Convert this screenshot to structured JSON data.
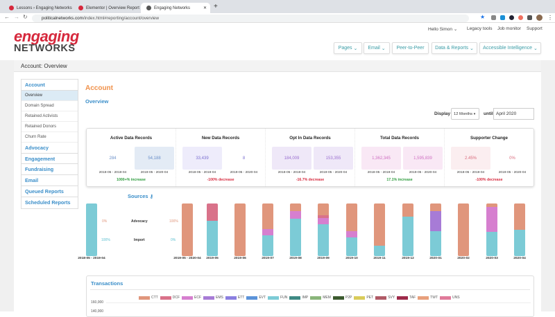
{
  "browser": {
    "tabs": [
      {
        "label": "Lessons › Engaging Networks"
      },
      {
        "label": "Elementor | Overview Report"
      },
      {
        "label": "Engaging Networks",
        "active": true
      }
    ],
    "url_host": "politicalnetworks.com",
    "url_path": "/index.html#reporting/account/overview"
  },
  "header": {
    "logo_top": "engaging",
    "logo_bottom": "NETWORKS",
    "user": "Hello Simon",
    "links": [
      "Legacy tools",
      "Job monitor",
      "Support"
    ],
    "menu": [
      {
        "label": "Pages",
        "dropdown": true
      },
      {
        "label": "Email",
        "dropdown": true
      },
      {
        "label": "Peer-to-Peer",
        "dropdown": false
      },
      {
        "label": "Data & Reports",
        "dropdown": true
      },
      {
        "label": "Accessible Intelligence",
        "dropdown": true
      }
    ]
  },
  "breadcrumb": "Account: Overview",
  "sidebar": {
    "sections": [
      {
        "label": "Account",
        "items": [
          "Overview",
          "Domain Spread",
          "Retained Activists",
          "Retained Donors",
          "Churn Rate"
        ],
        "selected": "Overview"
      },
      {
        "label": "Advocacy"
      },
      {
        "label": "Engagement"
      },
      {
        "label": "Fundraising"
      },
      {
        "label": "Email"
      },
      {
        "label": "Queued Reports"
      },
      {
        "label": "Scheduled Reports"
      }
    ]
  },
  "main": {
    "title": "Account",
    "subtitle": "Overview",
    "display_label": "Display",
    "display_value": "12 Months",
    "until_label": "until",
    "until_value": "April 2020"
  },
  "stats": [
    {
      "title": "Active Data Records",
      "a": "284",
      "b": "54,188",
      "pa": "2018-05 - 2019-04",
      "pb": "2019-05 - 2020-04",
      "change": "1000+% increase",
      "dir": "up",
      "color": "#6a8fc9",
      "bg": "#e3ebf5"
    },
    {
      "title": "New Data Records",
      "a": "33,439",
      "b": "8",
      "pa": "2018-05 - 2019-04",
      "pb": "2019-05 - 2020-04",
      "change": "-100% decrease",
      "dir": "down",
      "color": "#7b6fd0",
      "bg": "#eeecfb"
    },
    {
      "title": "Opt In Data Records",
      "a": "184,009",
      "b": "153,355",
      "pa": "2018-05 - 2019-04",
      "pb": "2019-05 - 2020-04",
      "change": "-16.7% decrease",
      "dir": "down",
      "color": "#9a6fd0",
      "bg": "#efe8f8"
    },
    {
      "title": "Total Data Records",
      "a": "1,362,345",
      "b": "1,595,839",
      "pa": "2018-05 - 2019-04",
      "pb": "2019-05 - 2020-04",
      "change": "17.1% increase",
      "dir": "up",
      "color": "#cf6fc2",
      "bg": "#f9e8f5"
    },
    {
      "title": "Supporter Change",
      "a": "2.45%",
      "b": "0%",
      "pa": "2018-05 - 2019-04",
      "pb": "2019-05 - 2020-04",
      "change": "-100% decrease",
      "dir": "down",
      "color": "#d96a7c",
      "bg": "#fbeef0"
    }
  ],
  "sources": {
    "title": "Sources",
    "rows": [
      {
        "label": "Advocacy",
        "a": "0%",
        "b": "100%"
      },
      {
        "label": "Import",
        "a": "100%",
        "b": "0%"
      }
    ],
    "bars": [
      {
        "label": "2018-05 - 2019-04",
        "FUN": 100
      },
      {
        "label": "2019-05 - 2020-04",
        "CTT": 100
      },
      {
        "label": "2019-05",
        "FUN": 67,
        "DCF": 33
      },
      {
        "label": "2019-06",
        "CTT": 100
      },
      {
        "label": "2019-07",
        "FUN": 40,
        "ECF": 11,
        "CTT": 49
      },
      {
        "label": "2019-08",
        "FUN": 71,
        "ECF": 15,
        "CTT": 14
      },
      {
        "label": "2019-09",
        "FUN": 61,
        "ECF": 11,
        "DCF": 5,
        "CTT": 23
      },
      {
        "label": "2019-10",
        "FUN": 35,
        "ECF": 12,
        "CTT": 53
      },
      {
        "label": "2019-11",
        "FUN": 20,
        "CTT": 80
      },
      {
        "label": "2019-12",
        "FUN": 75,
        "CTT": 25
      },
      {
        "label": "2020-01",
        "EMS": 38,
        "FUN": 47,
        "CTT": 15
      },
      {
        "label": "2020-02",
        "CTT": 100
      },
      {
        "label": "2020-03",
        "FUN": 46,
        "ECF": 48,
        "CTT": 6
      },
      {
        "label": "2020-04",
        "FUN": 50,
        "CTT": 50
      }
    ]
  },
  "transactions": {
    "title": "Transactions",
    "legend": [
      {
        "code": "CTT",
        "color": "#e0967c"
      },
      {
        "code": "DCF",
        "color": "#d9728a"
      },
      {
        "code": "ECF",
        "color": "#d67fcf"
      },
      {
        "code": "EMS",
        "color": "#a77bd6"
      },
      {
        "code": "ETT",
        "color": "#8b7fe0"
      },
      {
        "code": "EVT",
        "color": "#5b93d9"
      },
      {
        "code": "FUN",
        "color": "#7ccbd6"
      },
      {
        "code": "IMP",
        "color": "#3f8a84"
      },
      {
        "code": "MEM",
        "color": "#8ab57a"
      },
      {
        "code": "P2P",
        "color": "#3b5a2e"
      },
      {
        "code": "PET",
        "color": "#d9cc5a"
      },
      {
        "code": "SVY",
        "color": "#b05a66"
      },
      {
        "code": "TAF",
        "color": "#9e2a4a"
      },
      {
        "code": "TWT",
        "color": "#e8a07c"
      },
      {
        "code": "UNS",
        "color": "#e07a9a"
      }
    ],
    "y_ticks": [
      "160,000",
      "140,000"
    ]
  },
  "colors": {
    "accent": "#3a8ec9",
    "brand": "#d6283c",
    "title_orange": "#f0914a",
    "increase": "#2a9a3a",
    "decrease": "#d6283c"
  }
}
